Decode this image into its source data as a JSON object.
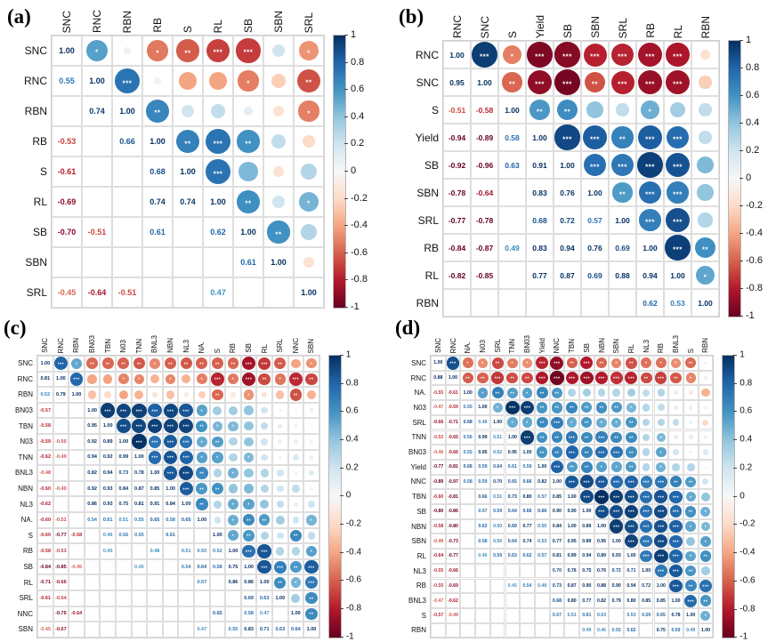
{
  "figure": {
    "background": "#ffffff",
    "colorbar": {
      "position": "right",
      "ticks": [
        "1",
        "0.8",
        "0.6",
        "0.4",
        "0.2",
        "0",
        "-0.2",
        "-0.4",
        "-0.6",
        "-0.8",
        "-1"
      ],
      "range": [
        -1,
        1
      ]
    },
    "colormap_stops": [
      {
        "v": -1.0,
        "c": "#67001f"
      },
      {
        "v": -0.8,
        "c": "#b2182b"
      },
      {
        "v": -0.6,
        "c": "#d6604d"
      },
      {
        "v": -0.4,
        "c": "#f4a582"
      },
      {
        "v": -0.2,
        "c": "#fddbc7"
      },
      {
        "v": 0.0,
        "c": "#f7f7f7"
      },
      {
        "v": 0.2,
        "c": "#d1e5f0"
      },
      {
        "v": 0.4,
        "c": "#92c5de"
      },
      {
        "v": 0.6,
        "c": "#4393c3"
      },
      {
        "v": 0.8,
        "c": "#2166ac"
      },
      {
        "v": 1.0,
        "c": "#053061"
      }
    ],
    "significance": {
      "three_star_min_abs_r": 0.69,
      "two_star_min_abs_r": 0.56,
      "one_star_min_abs_r": 0.0
    },
    "value_note": "numeric entries are printed coefficients shown in the lower triangle; '~x' entries are unlabeled non-significant circles (value estimated from circle size/color)"
  },
  "chart_data": [
    {
      "type": "heatmap",
      "title": "(a)",
      "variables": [
        "SNC",
        "RNC",
        "RBN",
        "RB",
        "S",
        "RL",
        "SB",
        "SBN",
        "SRL"
      ],
      "matrix_lower": [
        [
          1.0
        ],
        [
          0.55,
          1.0
        ],
        [
          "~0.05",
          0.74,
          1.0
        ],
        [
          -0.53,
          "~0.05",
          0.66,
          1.0
        ],
        [
          -0.61,
          "~-0.4",
          "~0.2",
          0.68,
          1.0
        ],
        [
          -0.69,
          "~-0.4",
          "~0.25",
          0.74,
          0.74,
          1.0
        ],
        [
          -0.7,
          -0.51,
          "~0.1",
          0.61,
          "~0.45",
          0.62,
          1.0
        ],
        [
          "~0.2",
          "~-0.25",
          "~-0.15",
          "~0.25",
          "~-0.15",
          "~0.2",
          0.61,
          1.0
        ],
        [
          -0.45,
          -0.64,
          -0.51,
          "~-0.2",
          "~0.3",
          0.47,
          "~0.3",
          "~-0.15",
          1.0
        ]
      ]
    },
    {
      "type": "heatmap",
      "title": "(b)",
      "variables": [
        "RNC",
        "SNC",
        "S",
        "Yield",
        "SB",
        "SBN",
        "SRL",
        "RB",
        "RL",
        "RBN"
      ],
      "matrix_lower": [
        [
          1.0
        ],
        [
          0.95,
          1.0
        ],
        [
          -0.51,
          -0.58,
          1.0
        ],
        [
          -0.94,
          -0.89,
          0.58,
          1.0
        ],
        [
          -0.92,
          -0.96,
          0.63,
          0.91,
          1.0
        ],
        [
          -0.78,
          -0.64,
          "~0.4",
          0.83,
          0.76,
          1.0
        ],
        [
          -0.77,
          -0.78,
          "~0.25",
          0.68,
          0.72,
          0.57,
          1.0
        ],
        [
          -0.84,
          -0.87,
          0.49,
          0.83,
          0.94,
          0.76,
          0.69,
          1.0
        ],
        [
          -0.82,
          -0.85,
          "~0.35",
          0.77,
          0.87,
          0.69,
          0.88,
          0.94,
          1.0
        ],
        [
          "~-0.15",
          "~-0.25",
          "~0.25",
          "~0.25",
          "~0.45",
          "~0.4",
          "~0.3",
          0.62,
          0.53,
          1.0
        ]
      ]
    },
    {
      "type": "heatmap",
      "title": "(c)",
      "variables": [
        "SNC",
        "RNC",
        "RBN",
        "BN03",
        "TBN",
        "N03",
        "TNN",
        "BNL3",
        "NBN",
        "NL3",
        "NA.",
        "S",
        "RB",
        "SB",
        "RL",
        "SRL",
        "NNC",
        "SBN"
      ],
      "matrix_lower": [
        [
          1.0
        ],
        [
          0.81,
          1.0
        ],
        [
          0.52,
          0.79,
          1.0
        ],
        [
          -0.57,
          "~-0.4",
          "~-0.3",
          1.0
        ],
        [
          -0.58,
          "~-0.4",
          "~-0.2",
          0.95,
          1.0
        ],
        [
          -0.59,
          -0.5,
          "~-0.4",
          0.92,
          0.89,
          1.0
        ],
        [
          -0.62,
          -0.49,
          "~-0.35",
          0.94,
          0.92,
          0.99,
          1.0
        ],
        [
          -0.48,
          "~-0.35",
          "~-0.15",
          0.82,
          0.94,
          0.73,
          0.78,
          1.0
        ],
        [
          -0.6,
          -0.49,
          "~-0.3",
          0.92,
          0.93,
          0.84,
          0.87,
          0.85,
          1.0
        ],
        [
          -0.62,
          "~-0.35",
          "~-0.1",
          0.86,
          0.93,
          0.75,
          0.81,
          0.91,
          0.84,
          1.0
        ],
        [
          -0.6,
          -0.51,
          "~-0.25",
          0.54,
          0.61,
          0.51,
          0.55,
          0.65,
          0.58,
          0.65,
          1.0
        ],
        [
          -0.6,
          -0.77,
          -0.58,
          "~0.35",
          0.46,
          0.56,
          0.55,
          "~0.3",
          0.61,
          "~0.3",
          "~0.2",
          1.0
        ],
        [
          -0.58,
          -0.53,
          "~-0.1",
          "~0.35",
          0.45,
          "~0.3",
          "~0.3",
          0.48,
          "~0.4",
          0.51,
          0.5,
          0.52,
          1.0
        ],
        [
          -0.84,
          -0.85,
          -0.45,
          "~0.4",
          "~0.4",
          "~0.4",
          0.45,
          "~0.4",
          "~0.45",
          0.54,
          0.64,
          0.58,
          0.75,
          1.0
        ],
        [
          -0.71,
          -0.66,
          "~-0.15",
          "~0.2",
          "~0.25",
          "~0.2",
          "~0.2",
          "~0.3",
          "~0.3",
          "~0.4",
          0.57,
          "~0.3",
          0.86,
          0.86,
          1.0
        ],
        [
          -0.61,
          -0.54,
          "~-0.3",
          "~0.05",
          "~0.1",
          "~0.08",
          "~0.05",
          "~0.2",
          "~0.2",
          "~0.25",
          "~0.35",
          "~0.2",
          "~0.3",
          0.69,
          0.63,
          1.0
        ],
        [
          "~-0.4",
          -0.75,
          -0.64,
          "~0.05",
          "~0.05",
          "~0.1",
          "~0.15",
          "~0.05",
          "~0.25",
          "~0.08",
          "~0.2",
          0.65,
          "~0.3",
          0.58,
          0.47,
          "~0.35",
          1.0
        ],
        [
          -0.45,
          -0.67,
          "~-0.35",
          "~-0.08",
          "~0.03",
          "~0.05",
          "~0.08",
          "~0.15",
          "~0.05",
          "~0.2",
          0.47,
          "~0.25",
          0.55,
          0.83,
          0.71,
          0.63,
          0.64,
          1.0
        ]
      ]
    },
    {
      "type": "heatmap",
      "title": "(d)",
      "variables": [
        "SNC",
        "RNC",
        "NA.",
        "N03",
        "SRL",
        "TNN",
        "BN03",
        "Yield",
        "NNC",
        "TBN",
        "SB",
        "NBN",
        "SBN",
        "RL",
        "NL3",
        "RB",
        "BNL3",
        "S",
        "RBN"
      ],
      "matrix_lower": [
        [
          1.0
        ],
        [
          0.88,
          1.0
        ],
        [
          -0.55,
          -0.61,
          1.0
        ],
        [
          -0.47,
          -0.59,
          0.55,
          1.0
        ],
        [
          -0.66,
          -0.71,
          0.68,
          0.48,
          1.0
        ],
        [
          -0.52,
          -0.65,
          0.56,
          0.99,
          0.51,
          1.0
        ],
        [
          -0.46,
          -0.66,
          0.55,
          0.95,
          0.52,
          0.95,
          1.0
        ],
        [
          -0.77,
          -0.81,
          0.66,
          0.59,
          0.64,
          0.61,
          0.59,
          1.0
        ],
        [
          -0.89,
          -0.97,
          0.58,
          0.59,
          0.7,
          0.65,
          0.66,
          0.82,
          1.0
        ],
        [
          -0.6,
          -0.81,
          "~0.3",
          0.66,
          0.51,
          0.73,
          0.8,
          0.57,
          0.85,
          1.0
        ],
        [
          -0.8,
          -0.86,
          "~0.35",
          0.57,
          0.59,
          0.64,
          0.66,
          0.66,
          0.9,
          0.9,
          1.0
        ],
        [
          -0.58,
          -0.8,
          "~0.3",
          0.62,
          0.5,
          0.69,
          0.77,
          0.55,
          0.84,
          1.0,
          0.89,
          1.0
        ],
        [
          -0.49,
          -0.73,
          "~0.3",
          0.58,
          0.5,
          0.64,
          0.74,
          0.53,
          0.77,
          0.95,
          0.89,
          0.95,
          1.0
        ],
        [
          -0.64,
          -0.77,
          "~0.35",
          0.46,
          0.59,
          0.63,
          0.62,
          0.57,
          0.81,
          0.89,
          0.94,
          0.89,
          0.93,
          1.0
        ],
        [
          -0.55,
          -0.66,
          "~0.25",
          "~0.3",
          "~0.3",
          "~0.3",
          "~0.3",
          "~0.3",
          0.7,
          0.76,
          0.75,
          0.76,
          0.72,
          0.71,
          1.0
        ],
        [
          -0.55,
          -0.69,
          "~0.3",
          "~0.25",
          "~0.3",
          0.45,
          0.54,
          0.48,
          0.73,
          0.87,
          0.9,
          0.88,
          0.9,
          0.94,
          0.72,
          1.0
        ],
        [
          -0.47,
          -0.62,
          "~0.1",
          "~0.1",
          "~0.25",
          "~0.1",
          "~0.2",
          "~0.3",
          0.68,
          0.8,
          0.77,
          0.82,
          0.79,
          0.8,
          0.85,
          0.85,
          1.0
        ],
        [
          -0.57,
          -0.49,
          "~-0.1",
          "~0.08",
          "~0.05",
          "~0.1",
          "~0.05",
          "~0.3",
          0.57,
          0.51,
          0.61,
          0.53,
          "~0.4",
          0.53,
          0.59,
          0.65,
          0.78,
          1.0
        ],
        [
          "~-0.05",
          "~-0.05",
          "~-0.35",
          "~0.05",
          "~-0.2",
          "~0.05",
          "~0.15",
          "~0.03",
          "~0.2",
          "~0.4",
          0.49,
          0.46,
          0.55,
          0.62,
          "~0.35",
          0.75,
          0.59,
          0.49,
          1.0
        ]
      ]
    }
  ]
}
